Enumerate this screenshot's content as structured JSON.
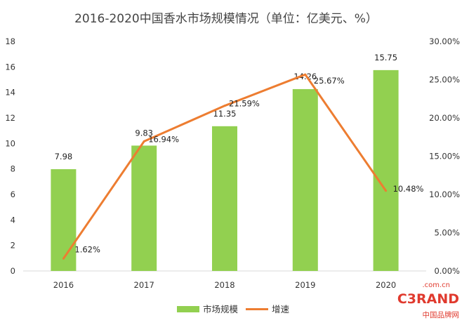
{
  "chart_data": {
    "type": "bar+line",
    "title": "2016-2020中国香水市场规模情况（单位：亿美元、%）",
    "categories": [
      "2016",
      "2017",
      "2018",
      "2019",
      "2020"
    ],
    "series": [
      {
        "name": "市场规模",
        "type": "bar",
        "axis": "left",
        "color": "#92d050",
        "values": [
          7.98,
          9.83,
          11.35,
          14.26,
          15.75
        ],
        "labels": [
          "7.98",
          "9.83",
          "11.35",
          "14.26",
          "15.75"
        ]
      },
      {
        "name": "增速",
        "type": "line",
        "axis": "right",
        "color": "#ed7d31",
        "values": [
          1.62,
          16.94,
          21.59,
          25.67,
          10.48
        ],
        "labels": [
          "1.62%",
          "16.94%",
          "21.59%",
          "25.67%",
          "10.48%"
        ]
      }
    ],
    "y_left": {
      "min": 0,
      "max": 18,
      "step": 2,
      "ticks": [
        "0",
        "2",
        "4",
        "6",
        "8",
        "10",
        "12",
        "14",
        "16",
        "18"
      ]
    },
    "y_right": {
      "min": 0,
      "max": 30,
      "step": 5,
      "ticks": [
        "0.00%",
        "5.00%",
        "10.00%",
        "15.00%",
        "20.00%",
        "25.00%",
        "30.00%"
      ]
    },
    "grid": false,
    "legend_position": "bottom"
  },
  "watermark": {
    "domain": ".com.cn",
    "brand": "C3RAND",
    "subtitle": "中国品牌网"
  }
}
